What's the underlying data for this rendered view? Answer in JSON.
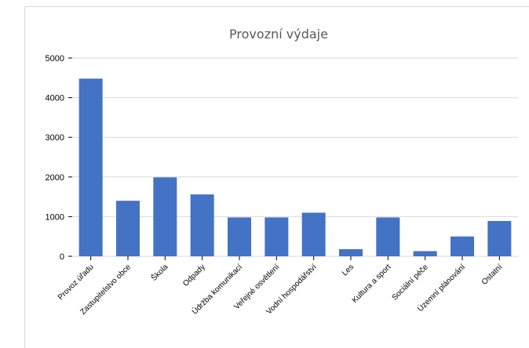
{
  "chart_data": {
    "type": "bar",
    "title": "Provozní výdaje",
    "xlabel": "",
    "ylabel": "",
    "categories": [
      "Provoz úřadu",
      "Zastupitelstvo obce",
      "Škola",
      "Odpady",
      "Údržba komunikací",
      "Veřejné osvětlení",
      "Vodní hospodářství",
      "Les",
      "Kultura a sport",
      "Sociální péče",
      "Územní plánování",
      "Ostatní"
    ],
    "series": [
      {
        "values": [
          4480,
          1400,
          1990,
          1560,
          980,
          980,
          1100,
          180,
          980,
          130,
          500,
          890
        ]
      }
    ],
    "ylim": [
      0,
      5000
    ],
    "yticks": [
      0,
      1000,
      2000,
      3000,
      4000,
      5000
    ],
    "grid": true,
    "legend": "none",
    "colors": {
      "bar": "#4472c4",
      "grid": "#d9d9d9"
    }
  }
}
